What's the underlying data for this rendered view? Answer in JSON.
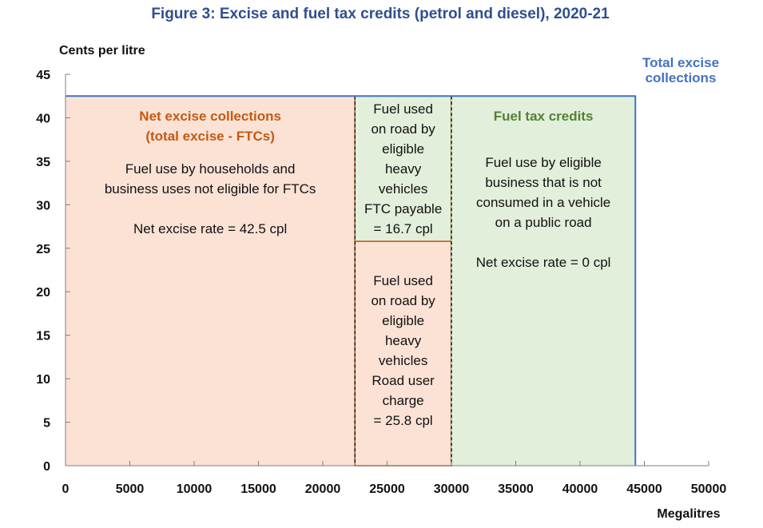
{
  "chart_data": {
    "type": "area",
    "title": "Figure 3: Excise and fuel tax credits (petrol and diesel), 2020-21",
    "ylabel": "Cents per litre",
    "xlabel": "Megalitres",
    "xlim": [
      0,
      50000
    ],
    "ylim": [
      0,
      45
    ],
    "x_ticks": [
      "0",
      "5000",
      "10000",
      "15000",
      "20000",
      "25000",
      "30000",
      "35000",
      "40000",
      "45000",
      "50000"
    ],
    "y_ticks": [
      "0",
      "5",
      "10",
      "15",
      "20",
      "25",
      "30",
      "35",
      "40",
      "45"
    ],
    "excise_rate_cpl": 42.5,
    "regions": [
      {
        "id": "net-excise",
        "x": [
          0,
          22500
        ],
        "y": [
          0,
          42.5
        ],
        "fill": "#fbe2d5",
        "border": "none",
        "heading": [
          "Net excise collections",
          "(total excise - FTCs)"
        ],
        "body": [
          "Fuel use by households and",
          "business uses not eligible for FTCs",
          "",
          "Net excise rate = 42.5 cpl"
        ]
      },
      {
        "id": "heavy-road-user-charge",
        "x": [
          22500,
          30000
        ],
        "y": [
          0,
          25.8
        ],
        "fill": "#fbe2d5",
        "border": "#c55a11",
        "heading": [],
        "body": [
          "Fuel used",
          "on road by",
          "eligible",
          "heavy",
          "vehicles",
          "Road user",
          "charge",
          "= 25.8 cpl"
        ]
      },
      {
        "id": "heavy-ftc-payable",
        "x": [
          22500,
          30000
        ],
        "y": [
          25.8,
          42.5
        ],
        "fill": "#e2efda",
        "border": "#c55a11",
        "heading": [],
        "body": [
          "Fuel used",
          "on road by",
          "eligible",
          "heavy",
          "vehicles",
          "FTC payable",
          "= 16.7 cpl"
        ]
      },
      {
        "id": "fuel-tax-credits",
        "x": [
          30000,
          44300
        ],
        "y": [
          0,
          42.5
        ],
        "fill": "#e2efda",
        "border": "none",
        "heading": [
          "Fuel tax credits"
        ],
        "body": [
          "Fuel use by eligible",
          "business that is not",
          "consumed in a vehicle",
          "on a public road",
          "",
          "Net excise rate = 0 cpl"
        ]
      }
    ],
    "total_excise_outline": {
      "label": [
        "Total excise",
        "collections"
      ],
      "x": [
        0,
        44300
      ],
      "y": [
        0,
        42.5
      ],
      "color": "#4472c4"
    },
    "dashed_dividers_x": [
      22500,
      30000
    ],
    "colors": {
      "net_excise": "#c55a11",
      "fuel_tax_credits": "#538135",
      "total_excise": "#4472c4",
      "title": "#2f4f8f"
    }
  }
}
